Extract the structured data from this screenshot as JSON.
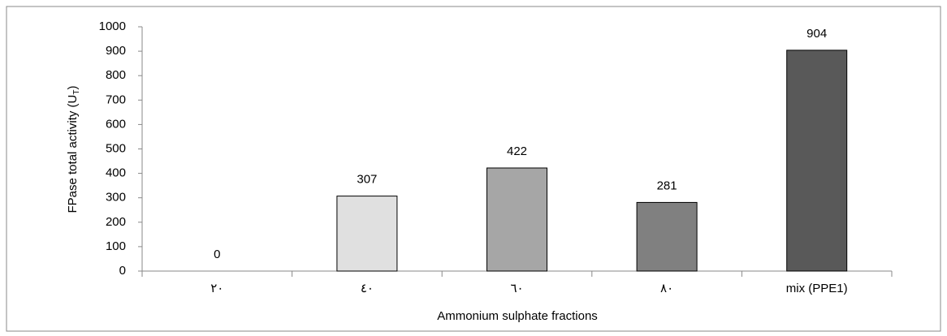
{
  "chart_data": {
    "type": "bar",
    "x_label": "Ammonium sulphate fractions",
    "y_label_parts": [
      "FPase total activity (U",
      "T",
      ")"
    ],
    "categories": [
      "٢٠",
      "٤٠",
      "٦٠",
      "٨٠",
      "mix (PPE1)"
    ],
    "values": [
      0,
      307,
      422,
      281,
      904
    ],
    "colors": [
      "#ffffff",
      "#e0e0e0",
      "#a6a6a6",
      "#808080",
      "#595959"
    ],
    "ylim": [
      0,
      1000
    ],
    "yticks": [
      0,
      100,
      200,
      300,
      400,
      500,
      600,
      700,
      800,
      900,
      1000
    ],
    "grid": false
  }
}
